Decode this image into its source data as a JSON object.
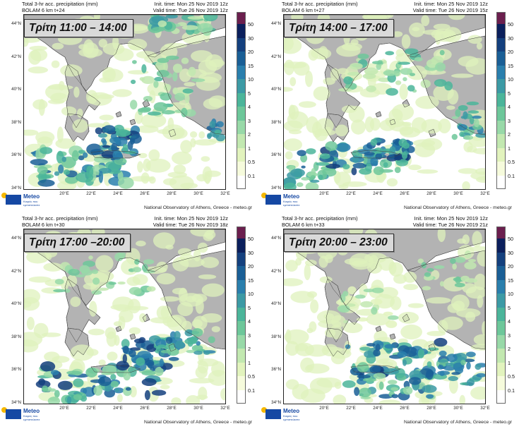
{
  "panels": [
    {
      "time_label": "Τρίτη 11:00 – 14:00",
      "title": "Total 3-hr acc. precipitation (mm)",
      "model": "BOLAM 6 km t+24",
      "init_time": "Init. time: Mon 25 Nov 2019 12z",
      "valid_time": "Valid time: Tue 26 Nov 2019 12z"
    },
    {
      "time_label": "Τρίτη 14:00 – 17:00",
      "title": "Total 3-hr acc. precipitation (mm)",
      "model": "BOLAM 6 km t+27",
      "init_time": "Init. time: Mon 25 Nov 2019 12z",
      "valid_time": "Valid time: Tue 26 Nov 2019 15z"
    },
    {
      "time_label": "Τρίτη 17:00 –20:00",
      "title": "Total 3-hr acc. precipitation (mm)",
      "model": "BOLAM 6 km t+30",
      "init_time": "Init. time: Mon 25 Nov 2019 12z",
      "valid_time": "Valid time: Tue 26 Nov 2019 18z"
    },
    {
      "time_label": "Τρίτη 20:00 – 23:00",
      "title": "Total 3-hr acc. precipitation (mm)",
      "model": "BOLAM 6 km t+33",
      "init_time": "Init. time: Mon 25 Nov 2019 12z",
      "valid_time": "Valid time: Tue 26 Nov 2019 21z"
    }
  ],
  "lat_labels": [
    "44°N",
    "42°N",
    "40°N",
    "38°N",
    "36°N",
    "34°N"
  ],
  "lon_labels": [
    "20°E",
    "22°E",
    "24°E",
    "26°E",
    "28°E",
    "30°E",
    "32°E"
  ],
  "colorbar": {
    "levels": [
      "50",
      "30",
      "20",
      "15",
      "10",
      "5",
      "4",
      "3",
      "2",
      "1",
      "0.5",
      "0.1"
    ],
    "colors": [
      "#6b1f4e",
      "#0b1f5c",
      "#14407e",
      "#1a5f96",
      "#2a7fad",
      "#3c9aa5",
      "#4bb59a",
      "#6dc79a",
      "#98d9a8",
      "#c2e8b0",
      "#e2f3bd",
      "#f6fbdc",
      "#ffffff"
    ]
  },
  "logo": {
    "name": "Meteo",
    "tagline": "Καιρός που εμπιστεύεστε"
  },
  "credit": "National Observatory of Athens, Greece - meteo.gr",
  "colors": {
    "land": "#b3b3b3",
    "sea": "#ffffff",
    "label_box": "#d9d9d9"
  }
}
